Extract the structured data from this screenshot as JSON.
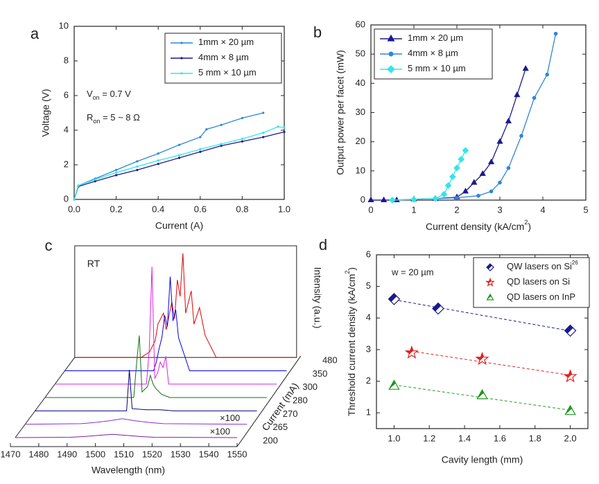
{
  "chart_data": [
    {
      "type": "line",
      "label": "a",
      "xlabel": "Current (A)",
      "ylabel": "Voltage (V)",
      "xlim": [
        0,
        1
      ],
      "ylim": [
        0,
        10
      ],
      "xticks": [
        {
          "value": 0,
          "label": "0.0"
        },
        0.2,
        0.4,
        0.6,
        0.8,
        {
          "value": 1,
          "label": "1.0"
        }
      ],
      "yticks": [
        0,
        2,
        4,
        6,
        8,
        10
      ],
      "legend": "upper right",
      "annotations": [
        {
          "text": "V",
          "sub": "on",
          "after": " = 0.7 V"
        },
        {
          "text": "R",
          "sub": "on",
          "after": " = 5 ~ 8 Ω"
        }
      ],
      "series": [
        {
          "name": "1mm × 20 µm",
          "color": "#2f86d6",
          "marker": "dot",
          "x": [
            0,
            0.02,
            0.1,
            0.2,
            0.3,
            0.4,
            0.5,
            0.6,
            0.63,
            0.7,
            0.8,
            0.9
          ],
          "values": [
            0,
            0.8,
            1.2,
            1.7,
            2.2,
            2.65,
            3.15,
            3.6,
            4.05,
            4.3,
            4.7,
            5.0
          ]
        },
        {
          "name": "4mm × 8 µm",
          "color": "#1a1a8c",
          "marker": "dot",
          "x": [
            0,
            0.02,
            0.1,
            0.2,
            0.3,
            0.4,
            0.5,
            0.6,
            0.7,
            0.8,
            0.9,
            1.0
          ],
          "values": [
            0,
            0.75,
            1.05,
            1.4,
            1.7,
            2.05,
            2.4,
            2.75,
            3.1,
            3.35,
            3.6,
            3.9
          ]
        },
        {
          "name": "5 mm × 10 µm",
          "color": "#33e6e6",
          "marker": "dot",
          "x": [
            0,
            0.02,
            0.1,
            0.2,
            0.3,
            0.4,
            0.5,
            0.6,
            0.7,
            0.8,
            0.9,
            0.97,
            1.0
          ],
          "values": [
            0,
            0.8,
            1.15,
            1.55,
            1.9,
            2.25,
            2.55,
            2.9,
            3.2,
            3.5,
            3.85,
            4.2,
            4.15
          ]
        }
      ]
    },
    {
      "type": "line",
      "label": "b",
      "xlabel": "Current density (kA/cm",
      "xlabel_sup": "2",
      "xlabel_end": ")",
      "ylabel": "Output power per facet (mW)",
      "xlim": [
        0,
        5
      ],
      "ylim": [
        0,
        60
      ],
      "xticks": [
        0,
        1,
        2,
        3,
        4,
        5
      ],
      "yticks": [
        0,
        10,
        20,
        30,
        40,
        50,
        60
      ],
      "legend": "upper left",
      "series": [
        {
          "name": "1mm × 20 µm",
          "color": "#1a1a8c",
          "marker": "triangle",
          "x": [
            0,
            0.3,
            0.6,
            1,
            1.5,
            2,
            2.2,
            2.4,
            2.6,
            2.8,
            3.0,
            3.2,
            3.4,
            3.6
          ],
          "values": [
            0,
            0,
            0,
            0.3,
            0.5,
            1,
            3,
            6,
            9,
            13,
            20,
            27,
            36,
            45
          ]
        },
        {
          "name": "4mm × 8 µm",
          "color": "#2f86d6",
          "marker": "circle",
          "x": [
            0.5,
            1,
            1.5,
            2,
            2.5,
            2.8,
            3.0,
            3.2,
            3.5,
            3.8,
            4.1,
            4.3
          ],
          "values": [
            0,
            0.3,
            0.5,
            0.8,
            1.5,
            3,
            6,
            11,
            22,
            35,
            43,
            57
          ]
        },
        {
          "name": "5 mm × 10 µm",
          "color": "#33e6e6",
          "marker": "diamond",
          "x": [
            0.5,
            1,
            1.5,
            1.7,
            1.8,
            1.9,
            2.0,
            2.1,
            2.2
          ],
          "values": [
            0,
            0.2,
            0.5,
            2,
            5,
            8,
            11,
            14,
            17
          ]
        }
      ]
    },
    {
      "type": "waterfall",
      "label": "c",
      "annotation": "RT",
      "xlabel": "Wavelength (nm)",
      "ylabel": "Intensity (a.u.)",
      "zlabel": "Current (mA)",
      "xlim": [
        1470,
        1550
      ],
      "xticks": [
        1470,
        1480,
        1490,
        1500,
        1510,
        1520,
        1530,
        1540,
        1550
      ],
      "series": [
        {
          "name": "200",
          "color": "#7b1fa2",
          "note": "×100",
          "x": [
            1470,
            1490,
            1495,
            1500,
            1505,
            1510,
            1515,
            1520,
            1550
          ],
          "values": [
            0,
            0.3,
            1,
            2,
            3,
            2,
            1,
            0.3,
            0
          ]
        },
        {
          "name": "265",
          "color": "#8a2be2",
          "note": "×100",
          "x": [
            1470,
            1490,
            1495,
            1500,
            1505,
            1510,
            1515,
            1520,
            1550
          ],
          "values": [
            0,
            0.5,
            1.5,
            3,
            5,
            3,
            1.5,
            0.5,
            0
          ]
        },
        {
          "name": "270",
          "color": "#000080",
          "x": [
            1470,
            1503,
            1504,
            1505,
            1510,
            1515,
            1520,
            1550
          ],
          "values": [
            0,
            0,
            37,
            2,
            1,
            1,
            0,
            0
          ]
        },
        {
          "name": "280",
          "color": "#107010",
          "x": [
            1470,
            1502,
            1503,
            1504,
            1505,
            1507,
            1508,
            1509,
            1510,
            1512,
            1515,
            1550
          ],
          "values": [
            0,
            0,
            30,
            56,
            5,
            10,
            20,
            12,
            8,
            3,
            0,
            0
          ]
        },
        {
          "name": "300",
          "color": "#e020e0",
          "x": [
            1470,
            1503,
            1504,
            1505,
            1506,
            1507,
            1508,
            1509,
            1510,
            1511,
            1550
          ],
          "values": [
            0,
            0,
            30,
            106,
            5,
            10,
            20,
            15,
            25,
            0,
            0
          ]
        },
        {
          "name": "350",
          "color": "#0000e0",
          "x": [
            1470,
            1502,
            1503,
            1504,
            1505,
            1506,
            1507,
            1508,
            1509,
            1510,
            1511,
            1513,
            1515,
            1550
          ],
          "values": [
            0,
            0,
            8,
            20,
            30,
            50,
            40,
            85,
            45,
            55,
            30,
            15,
            0,
            0
          ]
        },
        {
          "name": "480",
          "color": "#e00000",
          "x": [
            1470,
            1494,
            1497,
            1499,
            1500,
            1502,
            1503,
            1505,
            1506,
            1507,
            1508,
            1509,
            1510,
            1512,
            1513,
            1515,
            1517,
            1519,
            1521,
            1550
          ],
          "values": [
            0,
            0,
            5,
            15,
            30,
            40,
            25,
            50,
            35,
            70,
            55,
            94,
            40,
            60,
            30,
            45,
            20,
            10,
            0,
            0
          ]
        }
      ]
    },
    {
      "type": "scatter",
      "label": "d",
      "annotation": "w = 20 µm",
      "xlabel": "Cavity length (mm)",
      "ylabel": "Threshold current density (kA/cm",
      "ylabel_sup": "2",
      "ylabel_end": ")",
      "xlim": [
        0.9,
        2.1
      ],
      "ylim": [
        0.5,
        6
      ],
      "xticks": [
        {
          "value": 1,
          "label": "1.0"
        },
        1.2,
        1.4,
        1.6,
        1.8,
        {
          "value": 2,
          "label": "2.0"
        }
      ],
      "yticks": [
        1,
        2,
        3,
        4,
        5,
        6
      ],
      "legend": "upper right",
      "fit": "dashed",
      "series": [
        {
          "name": "QW lasers on Si",
          "name_sup": "26",
          "color": "#1a1a8c",
          "marker": "diamond",
          "x": [
            1,
            1.25,
            2
          ],
          "values": [
            4.6,
            4.3,
            3.6
          ]
        },
        {
          "name": "QD lasers on Si",
          "color": "#e02020",
          "marker": "star",
          "x": [
            1.1,
            1.5,
            2
          ],
          "values": [
            2.9,
            2.7,
            2.15
          ]
        },
        {
          "name": "QD lasers on InP",
          "color": "#1a9a1a",
          "marker": "triangle",
          "x": [
            1,
            1.5,
            2
          ],
          "values": [
            1.85,
            1.55,
            1.05
          ]
        }
      ]
    }
  ]
}
